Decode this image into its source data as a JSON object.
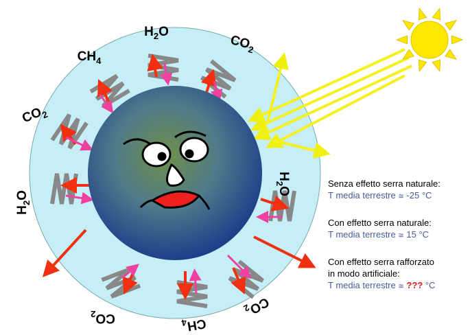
{
  "gas_labels": [
    {
      "base": "CH",
      "sub": "4",
      "tail": ""
    },
    {
      "base": "H",
      "sub": "2",
      "tail": "O"
    },
    {
      "base": "CO",
      "sub": "2",
      "tail": ""
    },
    {
      "base": "CO",
      "sub": "2",
      "tail": ""
    },
    {
      "base": "H",
      "sub": "2",
      "tail": "O"
    },
    {
      "base": "H",
      "sub": "2",
      "tail": "O"
    },
    {
      "base": "CO",
      "sub": "2",
      "tail": ""
    },
    {
      "base": "CH",
      "sub": "4",
      "tail": ""
    },
    {
      "base": "CO",
      "sub": "2",
      "tail": ""
    }
  ],
  "notes": [
    {
      "lines": [
        "Senza effetto serra naturale:"
      ],
      "label": "T media terrestre",
      "approx": "≅",
      "value": "-25",
      "unit": "°C"
    },
    {
      "lines": [
        "Con effetto serra naturale:"
      ],
      "label": "T media terrestre",
      "approx": "≅",
      "value": "15",
      "unit": "°C"
    },
    {
      "lines": [
        "Con effetto serra rafforzato",
        "in modo artificiale:"
      ],
      "label": "T media terrestre",
      "approx": "≅",
      "value": "???",
      "unit": "°C"
    }
  ]
}
